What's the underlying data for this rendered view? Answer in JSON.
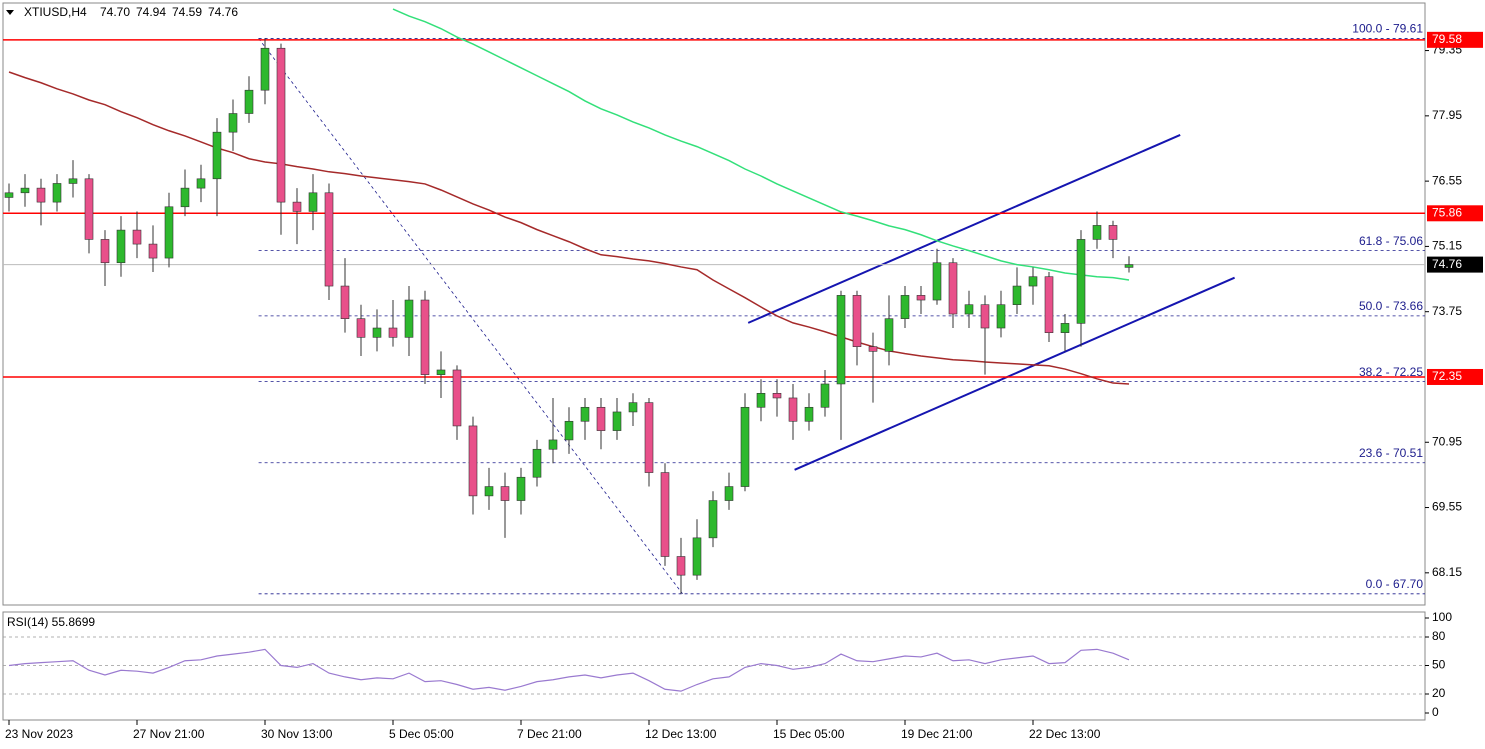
{
  "header": {
    "symbol": "XTIUSD,H4",
    "ohlc_labels": [
      "74.70",
      "74.94",
      "74.59",
      "74.76"
    ]
  },
  "chart_data": [
    {
      "type": "candlestick",
      "xlim": [
        -0.375,
        88.5
      ],
      "xticks": [
        {
          "value": 0,
          "label": "23 Nov 2023"
        },
        {
          "value": 8,
          "label": "27 Nov 21:00"
        },
        {
          "value": 16,
          "label": "30 Nov 13:00"
        },
        {
          "value": 24,
          "label": "5 Dec 05:00"
        },
        {
          "value": 32,
          "label": "7 Dec 21:00"
        },
        {
          "value": 40,
          "label": "12 Dec 13:00"
        },
        {
          "value": 48,
          "label": "15 Dec 05:00"
        },
        {
          "value": 56,
          "label": "19 Dec 21:00"
        },
        {
          "value": 64,
          "label": "22 Dec 13:00"
        }
      ],
      "ylim": [
        67.46,
        80.37
      ],
      "yticks": [
        68.15,
        69.55,
        70.95,
        73.75,
        75.15,
        76.55,
        77.95,
        79.35
      ],
      "up_color": "#2db82d",
      "down_color": "#e8508a",
      "candles": [
        [
          76.2,
          76.5,
          75.9,
          76.3
        ],
        [
          76.3,
          76.7,
          76.0,
          76.4
        ],
        [
          76.4,
          76.6,
          75.6,
          76.1
        ],
        [
          76.1,
          76.7,
          75.9,
          76.5
        ],
        [
          76.5,
          77.0,
          76.2,
          76.6
        ],
        [
          76.6,
          76.7,
          75.0,
          75.3
        ],
        [
          75.3,
          75.5,
          74.3,
          74.8
        ],
        [
          74.8,
          75.8,
          74.5,
          75.5
        ],
        [
          75.5,
          75.9,
          74.9,
          75.2
        ],
        [
          75.2,
          75.6,
          74.6,
          74.9
        ],
        [
          74.9,
          76.3,
          74.7,
          76.0
        ],
        [
          76.0,
          76.8,
          75.8,
          76.4
        ],
        [
          76.4,
          76.9,
          76.1,
          76.6
        ],
        [
          76.6,
          77.9,
          75.8,
          77.6
        ],
        [
          77.6,
          78.3,
          77.2,
          78.0
        ],
        [
          78.0,
          78.8,
          77.8,
          78.5
        ],
        [
          78.5,
          79.61,
          78.2,
          79.4
        ],
        [
          79.4,
          79.5,
          75.4,
          76.1
        ],
        [
          76.1,
          76.4,
          75.2,
          75.9
        ],
        [
          75.9,
          76.7,
          75.5,
          76.3
        ],
        [
          76.3,
          76.5,
          74.0,
          74.3
        ],
        [
          74.3,
          74.9,
          73.3,
          73.6
        ],
        [
          73.6,
          73.9,
          72.8,
          73.2
        ],
        [
          73.2,
          73.8,
          72.9,
          73.4
        ],
        [
          73.4,
          74.0,
          73.0,
          73.2
        ],
        [
          73.2,
          74.3,
          72.8,
          74.0
        ],
        [
          74.0,
          74.2,
          72.2,
          72.4
        ],
        [
          72.4,
          72.9,
          71.9,
          72.5
        ],
        [
          72.5,
          72.6,
          71.0,
          71.3
        ],
        [
          71.3,
          71.5,
          69.4,
          69.8
        ],
        [
          69.8,
          70.4,
          69.5,
          70.0
        ],
        [
          70.0,
          70.3,
          68.9,
          69.7
        ],
        [
          69.7,
          70.4,
          69.4,
          70.2
        ],
        [
          70.2,
          71.0,
          70.0,
          70.8
        ],
        [
          70.8,
          71.9,
          70.5,
          71.0
        ],
        [
          71.0,
          71.7,
          70.7,
          71.4
        ],
        [
          71.4,
          71.9,
          71.0,
          71.7
        ],
        [
          71.7,
          71.9,
          70.8,
          71.2
        ],
        [
          71.2,
          71.9,
          71.0,
          71.6
        ],
        [
          71.6,
          72.0,
          71.3,
          71.8
        ],
        [
          71.8,
          71.9,
          70.0,
          70.3
        ],
        [
          70.3,
          70.5,
          68.3,
          68.5
        ],
        [
          68.5,
          68.9,
          67.7,
          68.1
        ],
        [
          68.1,
          69.3,
          68.0,
          68.9
        ],
        [
          68.9,
          69.9,
          68.7,
          69.7
        ],
        [
          69.7,
          70.3,
          69.5,
          70.0
        ],
        [
          70.0,
          72.0,
          69.9,
          71.7
        ],
        [
          71.7,
          72.3,
          71.4,
          72.0
        ],
        [
          72.0,
          72.3,
          71.5,
          71.9
        ],
        [
          71.9,
          72.2,
          71.0,
          71.4
        ],
        [
          71.4,
          72.0,
          71.2,
          71.7
        ],
        [
          71.7,
          72.5,
          71.5,
          72.2
        ],
        [
          72.2,
          74.2,
          71.0,
          74.1
        ],
        [
          74.1,
          74.2,
          72.6,
          73.0
        ],
        [
          73.0,
          73.3,
          71.8,
          72.9
        ],
        [
          72.9,
          74.1,
          72.6,
          73.6
        ],
        [
          73.6,
          74.3,
          73.4,
          74.1
        ],
        [
          74.1,
          74.3,
          73.7,
          74.0
        ],
        [
          74.0,
          75.1,
          73.9,
          74.8
        ],
        [
          74.8,
          74.9,
          73.4,
          73.7
        ],
        [
          73.7,
          74.2,
          73.4,
          73.9
        ],
        [
          73.9,
          74.1,
          72.4,
          73.4
        ],
        [
          73.4,
          74.2,
          73.2,
          73.9
        ],
        [
          73.9,
          74.7,
          73.7,
          74.3
        ],
        [
          74.3,
          74.7,
          73.9,
          74.5
        ],
        [
          74.5,
          74.6,
          73.1,
          73.3
        ],
        [
          73.3,
          73.7,
          72.9,
          73.5
        ],
        [
          73.5,
          75.5,
          73.0,
          75.3
        ],
        [
          75.3,
          75.9,
          75.1,
          75.6
        ],
        [
          75.6,
          75.7,
          74.9,
          75.3
        ],
        [
          74.7,
          74.94,
          74.59,
          74.76
        ]
      ],
      "overlays": [
        {
          "color": "#33e07a",
          "values": [
            null,
            null,
            null,
            null,
            null,
            null,
            null,
            null,
            null,
            null,
            null,
            null,
            null,
            null,
            null,
            null,
            null,
            null,
            null,
            null,
            null,
            null,
            null,
            null,
            80.24,
            80.09,
            79.97,
            79.82,
            79.64,
            79.49,
            79.32,
            79.15,
            78.98,
            78.81,
            78.64,
            78.47,
            78.27,
            78.1,
            77.97,
            77.82,
            77.69,
            77.54,
            77.41,
            77.29,
            77.14,
            76.99,
            76.81,
            76.66,
            76.49,
            76.34,
            76.19,
            76.04,
            75.89,
            75.8,
            75.7,
            75.59,
            75.51,
            75.4,
            75.27,
            75.16,
            75.06,
            74.95,
            74.84,
            74.76,
            74.71,
            74.65,
            74.58,
            74.54,
            74.5,
            74.48,
            74.43
          ]
        },
        {
          "color": "#a52a2a",
          "values": [
            78.89,
            78.77,
            78.66,
            78.53,
            78.42,
            78.29,
            78.19,
            78.04,
            77.91,
            77.76,
            77.63,
            77.52,
            77.39,
            77.26,
            77.16,
            77.03,
            76.96,
            76.92,
            76.86,
            76.81,
            76.75,
            76.71,
            76.66,
            76.62,
            76.58,
            76.54,
            76.49,
            76.36,
            76.21,
            76.06,
            75.93,
            75.78,
            75.66,
            75.51,
            75.38,
            75.25,
            75.1,
            74.97,
            74.93,
            74.88,
            74.84,
            74.78,
            74.71,
            74.65,
            74.43,
            74.24,
            74.05,
            73.85,
            73.66,
            73.51,
            73.42,
            73.32,
            73.21,
            73.1,
            73.0,
            72.91,
            72.85,
            72.8,
            72.76,
            72.72,
            72.7,
            72.67,
            72.65,
            72.63,
            72.61,
            72.59,
            72.52,
            72.42,
            72.31,
            72.22,
            72.2
          ]
        }
      ],
      "levels": [
        {
          "value": 79.58,
          "color": "#ff0000"
        },
        {
          "value": 75.86,
          "color": "#ff0000"
        },
        {
          "value": 72.35,
          "color": "#ff0000"
        }
      ],
      "current_price": {
        "value": 74.76,
        "color": "#000000"
      },
      "fib": {
        "x_start": 15.6,
        "color": "#1c1c8c",
        "levels": [
          {
            "label": "100.0 - 79.61",
            "value": 79.61
          },
          {
            "label": "61.8 - 75.06",
            "value": 75.06
          },
          {
            "label": "50.0 - 73.66",
            "value": 73.66
          },
          {
            "label": "38.2 - 72.25",
            "value": 72.25
          },
          {
            "label": "23.6 - 70.51",
            "value": 70.51
          },
          {
            "label": "0.0 - 67.70",
            "value": 67.7
          }
        ]
      },
      "trend_lines": [
        {
          "x": [
            46.2,
            73.2
          ],
          "y": [
            73.51,
            77.54
          ],
          "color": "#1515b0",
          "style": "solid"
        },
        {
          "x": [
            49.1,
            76.6
          ],
          "y": [
            70.36,
            74.48
          ],
          "color": "#1515b0",
          "style": "solid"
        },
        {
          "x": [
            15.6,
            42.1
          ],
          "y": [
            79.61,
            67.7
          ],
          "color": "#1c1c8c",
          "style": "dashed"
        }
      ]
    },
    {
      "type": "line",
      "title": "RSI(14) 55.8699",
      "color": "#9a7ad0",
      "ylim": [
        0,
        100
      ],
      "yticks": [
        0,
        20,
        50,
        80,
        100
      ],
      "dashed_levels": [
        20,
        50,
        80
      ],
      "values": [
        50,
        52,
        53,
        54,
        55,
        45,
        40,
        45,
        44,
        42,
        48,
        55,
        56,
        60,
        62,
        64,
        67,
        50,
        48,
        52,
        42,
        38,
        35,
        37,
        36,
        42,
        33,
        34,
        30,
        25,
        27,
        24,
        28,
        33,
        35,
        38,
        40,
        37,
        40,
        42,
        34,
        25,
        23,
        30,
        36,
        38,
        48,
        52,
        50,
        46,
        48,
        52,
        62,
        55,
        54,
        57,
        60,
        59,
        63,
        55,
        56,
        52,
        56,
        58,
        60,
        52,
        53,
        66,
        67,
        63,
        56
      ]
    }
  ]
}
